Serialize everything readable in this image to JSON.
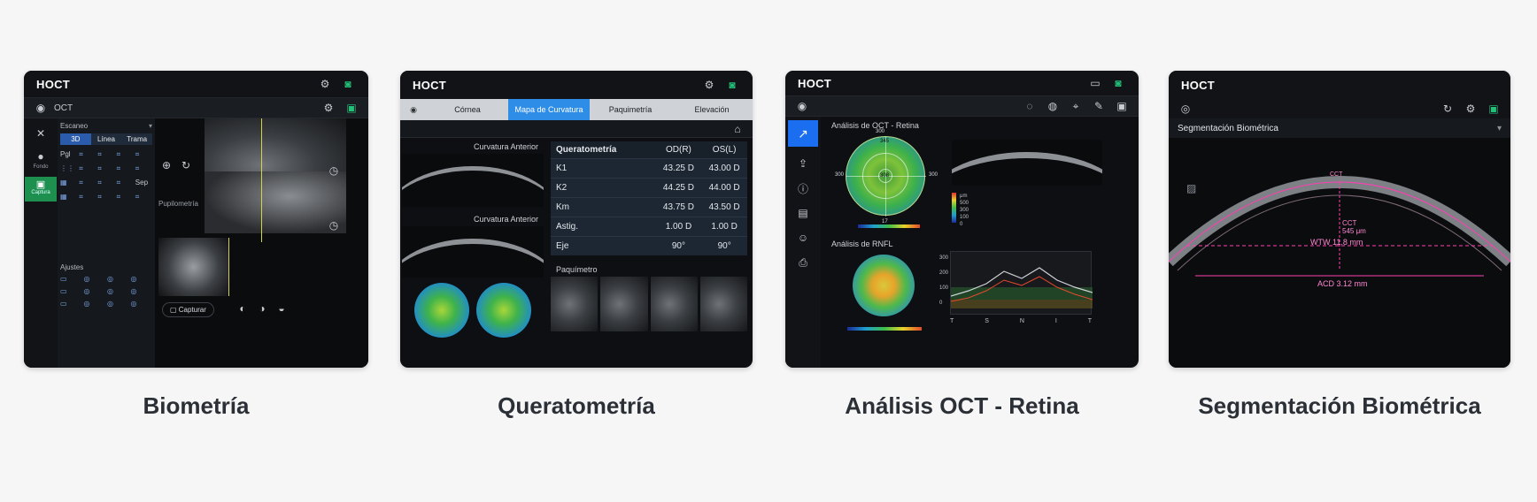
{
  "cards": [
    {
      "caption": "Biometría",
      "app_title": "HOCT",
      "toolbar_label": "OCT",
      "nav_items": [
        "Fondo",
        "Captura"
      ],
      "scan_header": "Escaneo",
      "mode_tabs": [
        "3D",
        "Línea",
        "Trama"
      ],
      "grid_labels": [
        "Pgl",
        "Sep"
      ],
      "section_label": "Pupilometría",
      "adjust_label": "Ajustes",
      "capture_button": "Capturar"
    },
    {
      "caption": "Queratometría",
      "app_title": "HOCT",
      "tabs": [
        "Córnea",
        "Mapa de Curvatura",
        "Paquimetría",
        "Elevación"
      ],
      "active_tab": "Mapa de Curvatura",
      "anterior_label": "Curvatura Anterior",
      "table_title": "Queratometría",
      "table_headers": [
        "OD(R)",
        "OS(L)"
      ],
      "rows": [
        {
          "label": "K1",
          "od": "43.25 D",
          "os": "43.00 D"
        },
        {
          "label": "K2",
          "od": "44.25 D",
          "os": "44.00 D"
        },
        {
          "label": "Km",
          "od": "43.75 D",
          "os": "43.50 D"
        },
        {
          "label": "Astig.",
          "od": "1.00 D",
          "os": "1.00 D"
        },
        {
          "label": "Eje",
          "od": "90°",
          "os": "90°"
        }
      ],
      "pachy_label": "Paquímetro"
    },
    {
      "caption": "Análisis OCT - Retina",
      "app_title": "HOCT",
      "retina_title": "Análisis de OCT - Retina",
      "rnfl_title": "Análisis de RNFL",
      "scale_label": "μm",
      "scale_values": [
        "500",
        "300",
        "100",
        "0"
      ],
      "graph_axis": [
        "T",
        "S",
        "N",
        "I",
        "T"
      ],
      "graph_y": [
        "300",
        "200",
        "100",
        "0"
      ],
      "grid_values": [
        "300",
        "345",
        "300",
        "300",
        "308",
        "330",
        "309",
        "304",
        "300",
        "308",
        "300",
        "300",
        "300",
        "17"
      ]
    },
    {
      "caption": "Segmentación Biométrica",
      "app_title": "HOCT",
      "section_title": "Segmentación Biométrica",
      "cct_label": "CCT",
      "cct_value": "545 μm",
      "wtw_label": "WTW 11.8 mm",
      "acd_label": "ACD 3.12 mm"
    }
  ],
  "colors": {
    "accent_blue": "#1b6ef0",
    "accent_green": "#24c07a",
    "caption": "#2b2f36",
    "measure_magenta": "#ff3fb4"
  }
}
